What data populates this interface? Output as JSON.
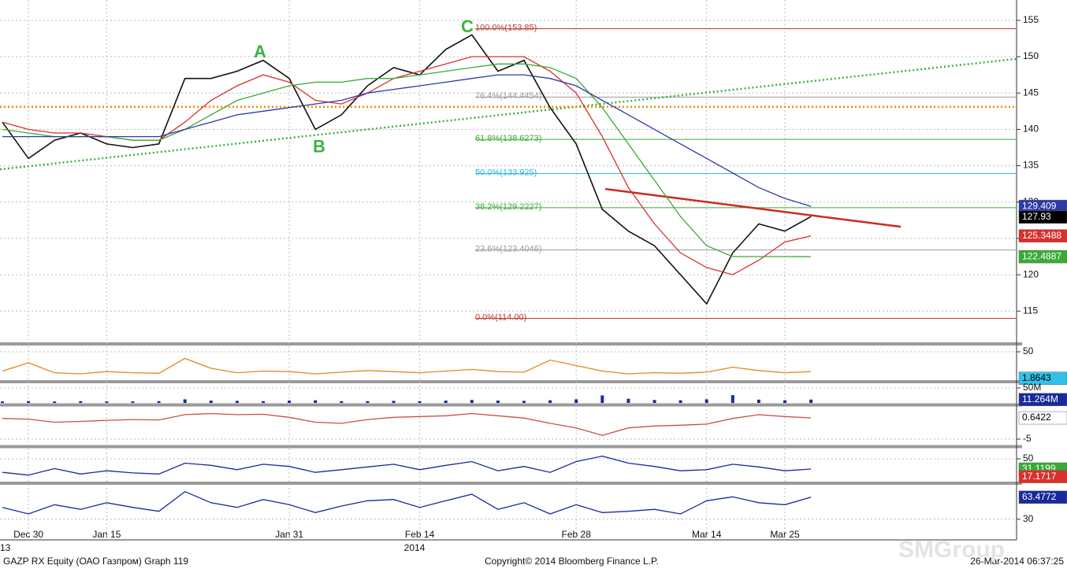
{
  "chart_data": [
    {
      "type": "line",
      "categories": [
        null,
        "Dec 30",
        null,
        null,
        "Jan 15",
        null,
        null,
        null,
        null,
        null,
        null,
        "Jan 31",
        null,
        null,
        null,
        null,
        "Feb 14",
        null,
        null,
        null,
        null,
        null,
        "Feb 28",
        null,
        null,
        null,
        null,
        "Mar 14",
        null,
        null,
        "Mar 25",
        null
      ],
      "x_year_labels": [
        "13",
        "2014"
      ],
      "series": [
        {
          "color": "#111111",
          "values": [
            141,
            136,
            138.5,
            139.5,
            138,
            137.5,
            138,
            147,
            147,
            148,
            149.5,
            147,
            140,
            142,
            146,
            148.5,
            147.5,
            151,
            153,
            148,
            149.5,
            143,
            138,
            129,
            126,
            124,
            120,
            116,
            123,
            127,
            126,
            128
          ]
        },
        {
          "color": "#d9302c",
          "values": [
            141,
            140,
            139.5,
            139.5,
            139,
            138.5,
            138.5,
            141,
            144,
            146,
            147.5,
            146.5,
            144,
            143.5,
            145,
            147,
            148,
            149,
            150,
            150,
            150,
            148,
            145,
            139,
            132,
            127,
            123,
            121,
            120,
            122,
            124.5,
            125.35
          ]
        },
        {
          "color": "#3aaa35",
          "values": [
            140,
            139.5,
            139,
            139,
            139,
            138.5,
            138.5,
            140,
            142,
            144,
            145,
            146,
            146.5,
            146.5,
            147,
            147,
            147.5,
            148,
            148.5,
            149,
            149,
            148.5,
            147,
            143,
            138,
            133,
            128,
            124,
            122.5,
            122.5,
            122.5,
            122.49
          ]
        },
        {
          "color": "#2b3aa8",
          "values": [
            139,
            139,
            139,
            139,
            139,
            139,
            139,
            140,
            141,
            142,
            142.5,
            143,
            143.5,
            144,
            145,
            145.5,
            146,
            146.5,
            147,
            147.5,
            147.5,
            147,
            146,
            144,
            142,
            140,
            138,
            136,
            134,
            132,
            130.5,
            129.41
          ]
        }
      ],
      "ylim": [
        110.7,
        157.8
      ],
      "yticks": [
        115,
        120,
        125,
        130,
        135,
        140,
        145,
        150,
        155
      ],
      "grid": true,
      "fib_levels": [
        {
          "label": "100.0%(153.85)",
          "value": 153.85,
          "color": "#c0392b"
        },
        {
          "label": "76.4%(144.4454)",
          "value": 144.4454,
          "color": "#999999"
        },
        {
          "label": "61.8%(138.6273)",
          "value": 138.6273,
          "color": "#3aaa35"
        },
        {
          "label": "50.0%(133.925)",
          "value": 133.925,
          "color": "#29b6e0"
        },
        {
          "label": "38.2%(129.2227)",
          "value": 129.2227,
          "color": "#3aaa35"
        },
        {
          "label": "23.6%(123.4046)",
          "value": 123.4046,
          "color": "#999999"
        },
        {
          "label": "0.0%(114.00)",
          "value": 114,
          "color": "#c0392b"
        }
      ],
      "trendlines": [
        {
          "color": "#3cb043",
          "style": "dotted",
          "values": [
            134.5,
            149.7
          ]
        },
        {
          "color": "#cc2a1e",
          "style": "solid",
          "values": [
            131.8,
            126.6
          ]
        },
        {
          "color": "#f08c00",
          "style": "dotted",
          "values": [
            143.1,
            143.1
          ]
        }
      ],
      "annotations": [
        {
          "text": "A",
          "value": 150.5
        },
        {
          "text": "B",
          "value": 137.5
        },
        {
          "text": "C",
          "value": 154
        }
      ],
      "tags": [
        {
          "value": 129.409,
          "color": "#2b3aa8"
        },
        {
          "value": 127.93,
          "color": "#000000"
        },
        {
          "value": 125.3488,
          "color": "#d9302c"
        },
        {
          "value": 122.4887,
          "color": "#3aaa35"
        }
      ]
    },
    {
      "type": "line",
      "series": [
        {
          "color": "#e08a1e",
          "values": [
            15,
            30,
            12,
            10,
            14,
            12,
            11,
            38,
            20,
            12,
            15,
            14,
            10,
            13,
            16,
            14,
            12,
            15,
            18,
            14,
            13,
            35,
            25,
            15,
            10,
            12,
            11,
            13,
            22,
            16,
            12,
            14
          ]
        }
      ],
      "ylim": [
        0,
        60
      ],
      "yticks": [
        50
      ],
      "tags": [
        {
          "value": 1.8643,
          "color": "#33c0e8"
        }
      ]
    },
    {
      "type": "bar",
      "series": [
        {
          "color": "#1a2a9c",
          "values": [
            5,
            6,
            5,
            6,
            5,
            5,
            6,
            12,
            8,
            7,
            6,
            8,
            9,
            6,
            6,
            7,
            6,
            8,
            10,
            8,
            7,
            9,
            12,
            25,
            14,
            10,
            9,
            12,
            26,
            11,
            9,
            11.264
          ]
        }
      ],
      "ylim": [
        0,
        63
      ],
      "yticks": [
        {
          "value": 50,
          "label": "50M"
        }
      ],
      "tags": [
        {
          "value": 11.264,
          "label": "11.264M",
          "color": "#1a2a9c"
        }
      ]
    },
    {
      "type": "line",
      "series": [
        {
          "color": "#c9504a",
          "values": [
            0.5,
            0.3,
            -0.5,
            -0.3,
            0,
            0.2,
            0.1,
            1.5,
            1.8,
            1.5,
            1.6,
            0.8,
            -0.5,
            -0.8,
            0.2,
            0.8,
            1,
            1.2,
            1.8,
            1.2,
            0.6,
            -0.8,
            -2,
            -4,
            -2,
            -1.5,
            -1.3,
            -1,
            0.5,
            1.5,
            1,
            0.6422
          ]
        }
      ],
      "ylim": [
        -6.46,
        3.57
      ],
      "yticks": [
        -5
      ],
      "tags": [
        {
          "value": 0.6422,
          "color": "#ffffff"
        }
      ]
    },
    {
      "type": "line",
      "series": [
        {
          "color": "#1a2a9c",
          "values": [
            25,
            20,
            32,
            22,
            28,
            24,
            22,
            42,
            38,
            30,
            40,
            36,
            25,
            30,
            35,
            40,
            30,
            38,
            45,
            28,
            36,
            25,
            45,
            55,
            42,
            36,
            28,
            30,
            40,
            35,
            28,
            31.1199
          ]
        }
      ],
      "ylim": [
        10.8,
        68.9
      ],
      "yticks": [
        50
      ],
      "tags": [
        {
          "value": 31.1199,
          "color": "#3aaa35"
        },
        {
          "value": 17.1717,
          "color": "#d9302c"
        }
      ]
    },
    {
      "type": "line",
      "series": [
        {
          "color": "#1a2a9c",
          "values": [
            48,
            38,
            52,
            45,
            55,
            48,
            42,
            72,
            55,
            48,
            60,
            52,
            40,
            50,
            58,
            60,
            48,
            58,
            68,
            45,
            55,
            38,
            52,
            40,
            42,
            45,
            38,
            58,
            64,
            55,
            52,
            63.4772
          ]
        }
      ],
      "ylim": [
        20,
        80
      ],
      "yticks": [
        30
      ],
      "tags": [
        {
          "value": 63.4772,
          "color": "#1a2a9c"
        }
      ]
    }
  ],
  "footer": {
    "left": "GAZP RX Equity (ОАО Газпром) Graph 119",
    "center": "Copyright© 2014 Bloomberg Finance L.P.",
    "right": "26-Mar-2014 06:37:25",
    "watermark": "SMGroup"
  }
}
